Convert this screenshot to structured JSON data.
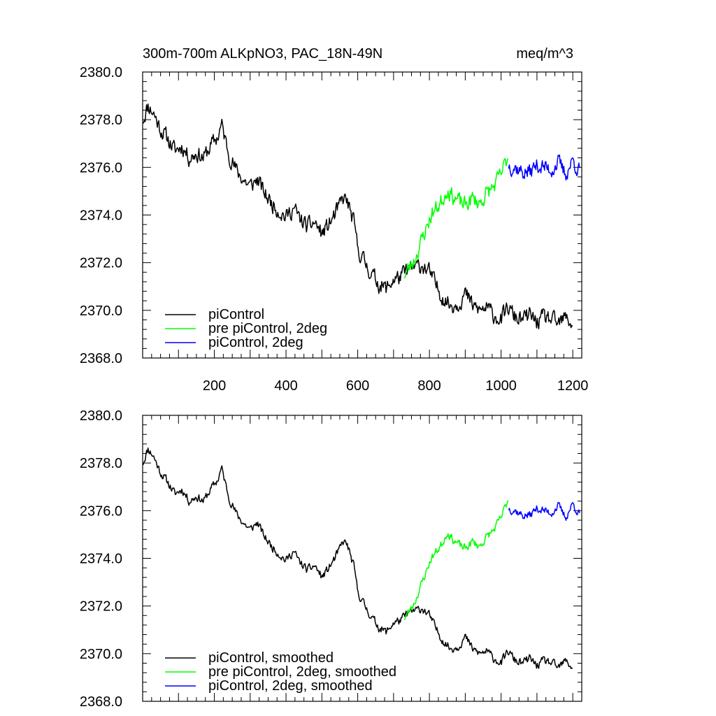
{
  "chart_data": [
    {
      "type": "line",
      "title": "300m-700m ALKpNO3, PAC_18N-49N",
      "units": "meq/m^3",
      "xlim": [
        0,
        1225
      ],
      "ylim": [
        2368,
        2380
      ],
      "xticks": [
        200,
        400,
        600,
        800,
        1000,
        1200
      ],
      "xtick_labels": [
        "200",
        "400",
        "600",
        "800",
        "1000",
        "1200"
      ],
      "show_xtick_labels": true,
      "yticks": [
        2368,
        2370,
        2372,
        2374,
        2376,
        2378,
        2380
      ],
      "ytick_labels": [
        "2368.0",
        "2370.0",
        "2372.0",
        "2374.0",
        "2376.0",
        "2378.0",
        "2380.0"
      ],
      "grid": false,
      "legend_position": "bottom-left",
      "series": [
        {
          "name": "piControl",
          "color": "#000000",
          "noise": 0.55,
          "seed": 11,
          "x": [
            1,
            15,
            30,
            50,
            70,
            90,
            110,
            130,
            150,
            170,
            190,
            210,
            220,
            240,
            260,
            280,
            300,
            320,
            340,
            360,
            380,
            400,
            420,
            440,
            460,
            480,
            500,
            520,
            540,
            560,
            570,
            590,
            600,
            620,
            640,
            660,
            680,
            700,
            720,
            740,
            760,
            780,
            800,
            820,
            840,
            860,
            880,
            900,
            920,
            940,
            960,
            980,
            1000,
            1020,
            1040,
            1060,
            1080,
            1100,
            1120,
            1140,
            1160,
            1180,
            1200
          ],
          "y": [
            2378.0,
            2378.6,
            2378.3,
            2377.6,
            2377.2,
            2376.7,
            2376.9,
            2376.4,
            2376.6,
            2376.4,
            2376.9,
            2377.3,
            2377.8,
            2376.6,
            2375.9,
            2375.5,
            2375.2,
            2375.5,
            2374.9,
            2374.5,
            2374.2,
            2373.9,
            2374.3,
            2373.8,
            2373.5,
            2373.7,
            2373.2,
            2373.6,
            2374.1,
            2374.7,
            2374.6,
            2373.6,
            2372.6,
            2372.0,
            2371.5,
            2371.1,
            2370.9,
            2371.3,
            2371.4,
            2371.7,
            2371.8,
            2371.9,
            2371.6,
            2371.0,
            2370.5,
            2370.2,
            2370.3,
            2370.7,
            2370.2,
            2370.0,
            2370.1,
            2369.8,
            2369.6,
            2370.1,
            2369.7,
            2369.6,
            2369.8,
            2369.5,
            2369.7,
            2369.6,
            2369.4,
            2369.7,
            2369.4
          ]
        },
        {
          "name": "pre piControl, 2deg",
          "color": "#00ff00",
          "noise": 0.55,
          "seed": 23,
          "x": [
            730,
            745,
            760,
            775,
            790,
            805,
            820,
            835,
            850,
            865,
            880,
            900,
            920,
            940,
            960,
            980,
            1000,
            1020
          ],
          "y": [
            2371.5,
            2371.8,
            2372.2,
            2372.8,
            2373.4,
            2374.0,
            2374.3,
            2374.6,
            2375.1,
            2374.8,
            2374.6,
            2374.4,
            2374.7,
            2374.5,
            2374.9,
            2375.2,
            2375.7,
            2376.5
          ]
        },
        {
          "name": "piControl, 2deg",
          "color": "#0000ff",
          "noise": 0.55,
          "seed": 37,
          "x": [
            1021,
            1040,
            1060,
            1080,
            1100,
            1120,
            1140,
            1160,
            1180,
            1200,
            1220
          ],
          "y": [
            2376.1,
            2376.0,
            2375.8,
            2375.8,
            2376.1,
            2376.0,
            2375.9,
            2376.2,
            2375.7,
            2376.3,
            2375.8
          ]
        }
      ]
    },
    {
      "type": "line",
      "title": "",
      "units": "",
      "xlim": [
        0,
        1225
      ],
      "ylim": [
        2368,
        2380
      ],
      "xticks": [
        200,
        400,
        600,
        800,
        1000,
        1200
      ],
      "xtick_labels": [],
      "show_xtick_labels": false,
      "yticks": [
        2368,
        2370,
        2372,
        2374,
        2376,
        2378,
        2380
      ],
      "ytick_labels": [
        "2368.0",
        "2370.0",
        "2372.0",
        "2374.0",
        "2376.0",
        "2378.0",
        "2380.0"
      ],
      "grid": false,
      "legend_position": "bottom-left",
      "series": [
        {
          "name": "piControl, smoothed",
          "color": "#000000",
          "noise": 0.28,
          "seed": 11,
          "x": [
            1,
            15,
            30,
            50,
            70,
            90,
            110,
            130,
            150,
            170,
            190,
            210,
            220,
            240,
            260,
            280,
            300,
            320,
            340,
            360,
            380,
            400,
            420,
            440,
            460,
            480,
            500,
            520,
            540,
            560,
            570,
            590,
            600,
            620,
            640,
            660,
            680,
            700,
            720,
            740,
            760,
            780,
            800,
            820,
            840,
            860,
            880,
            900,
            920,
            940,
            960,
            980,
            1000,
            1020,
            1040,
            1060,
            1080,
            1100,
            1120,
            1140,
            1160,
            1180,
            1200
          ],
          "y": [
            2378.0,
            2378.6,
            2378.3,
            2377.6,
            2377.2,
            2376.7,
            2376.9,
            2376.4,
            2376.6,
            2376.4,
            2376.9,
            2377.3,
            2377.8,
            2376.6,
            2375.9,
            2375.5,
            2375.2,
            2375.5,
            2374.9,
            2374.5,
            2374.2,
            2373.9,
            2374.3,
            2373.8,
            2373.5,
            2373.7,
            2373.2,
            2373.6,
            2374.1,
            2374.7,
            2374.6,
            2373.6,
            2372.6,
            2372.0,
            2371.5,
            2371.1,
            2370.9,
            2371.3,
            2371.4,
            2371.7,
            2371.8,
            2371.9,
            2371.6,
            2371.0,
            2370.5,
            2370.2,
            2370.3,
            2370.7,
            2370.2,
            2370.0,
            2370.1,
            2369.8,
            2369.6,
            2370.1,
            2369.7,
            2369.6,
            2369.8,
            2369.5,
            2369.7,
            2369.6,
            2369.4,
            2369.7,
            2369.4
          ]
        },
        {
          "name": "pre piControl, 2deg, smoothed",
          "color": "#00ff00",
          "noise": 0.28,
          "seed": 23,
          "x": [
            730,
            745,
            760,
            775,
            790,
            805,
            820,
            835,
            850,
            865,
            880,
            900,
            920,
            940,
            960,
            980,
            1000,
            1020
          ],
          "y": [
            2371.5,
            2371.8,
            2372.2,
            2372.8,
            2373.4,
            2374.0,
            2374.3,
            2374.6,
            2375.1,
            2374.8,
            2374.6,
            2374.4,
            2374.7,
            2374.5,
            2374.9,
            2375.2,
            2375.7,
            2376.5
          ]
        },
        {
          "name": "piControl, 2deg, smoothed",
          "color": "#0000ff",
          "noise": 0.28,
          "seed": 37,
          "x": [
            1021,
            1040,
            1060,
            1080,
            1100,
            1120,
            1140,
            1160,
            1180,
            1200,
            1220
          ],
          "y": [
            2376.1,
            2376.0,
            2375.8,
            2375.8,
            2376.1,
            2376.0,
            2375.9,
            2376.2,
            2375.7,
            2376.3,
            2375.8
          ]
        }
      ]
    }
  ]
}
